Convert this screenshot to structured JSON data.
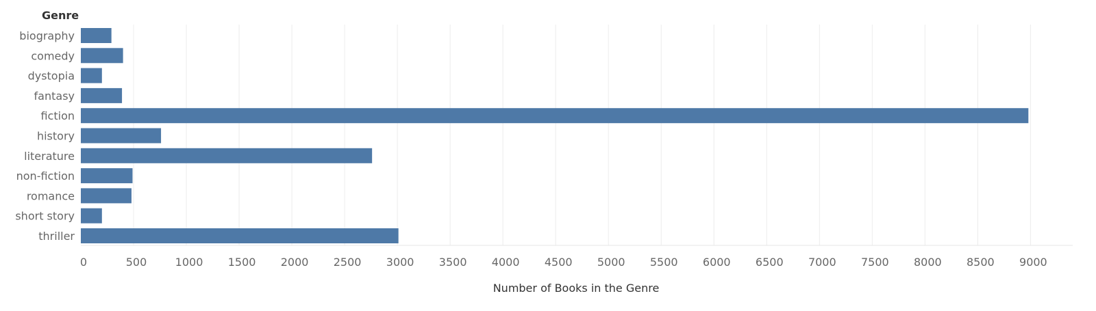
{
  "chart_data": {
    "type": "bar",
    "orientation": "horizontal",
    "row_header": "Genre",
    "categories": [
      "biography",
      "comedy",
      "dystopia",
      "fantasy",
      "fiction",
      "history",
      "literature",
      "non-fiction",
      "romance",
      "short story",
      "thriller"
    ],
    "values": [
      290,
      400,
      200,
      390,
      8980,
      760,
      2760,
      490,
      480,
      200,
      3010
    ],
    "xlabel": "Number of Books in the Genre",
    "ylabel": "",
    "xlim": [
      0,
      9400
    ],
    "xticks": [
      0,
      500,
      1000,
      1500,
      2000,
      2500,
      3000,
      3500,
      4000,
      4500,
      5000,
      5500,
      6000,
      6500,
      7000,
      7500,
      8000,
      8500,
      9000
    ],
    "grid": true,
    "colors": {
      "bar": "#4e79a7",
      "grid": "#ececec"
    }
  }
}
